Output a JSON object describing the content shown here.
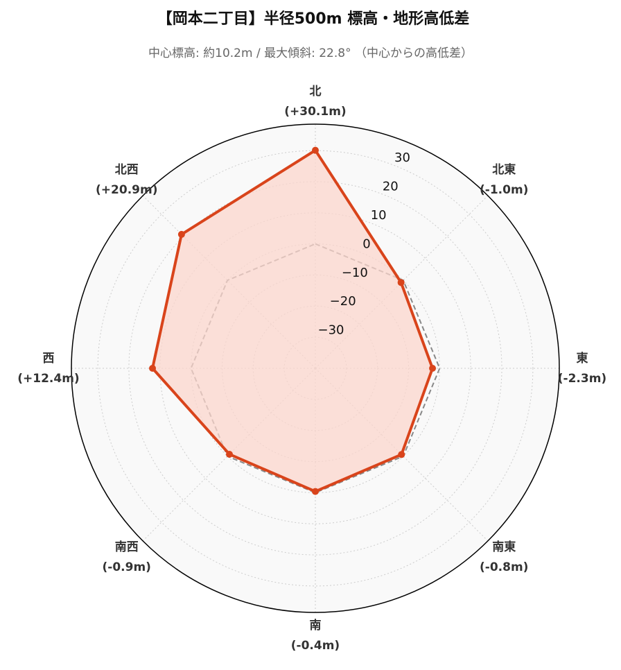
{
  "chart_data": {
    "type": "radar",
    "title": "【岡本二丁目】半径500m 標高・地形高低差",
    "subtitle": "中心標高: 約10.2m / 最大傾斜: 22.8° （中心からの高低差）",
    "categories": [
      "北",
      "北東",
      "東",
      "南東",
      "南",
      "南西",
      "西",
      "北西"
    ],
    "series": [
      {
        "color": "#d9441b",
        "fill": "#fbd6cc",
        "values": [
          30.1,
          -1.0,
          -2.3,
          -0.8,
          -0.4,
          -0.9,
          12.4,
          20.9
        ],
        "value_labels": [
          "(+30.1m)",
          "(-1.0m)",
          "(-2.3m)",
          "(-0.8m)",
          "(-0.4m)",
          "(-0.9m)",
          "(+12.4m)",
          "(+20.9m)"
        ]
      }
    ],
    "baseline": 0,
    "ylim": [
      -40,
      38.5
    ],
    "yticks": [
      {
        "value": -30,
        "label": "−30"
      },
      {
        "value": -20,
        "label": "−20"
      },
      {
        "value": -10,
        "label": "−10"
      },
      0,
      10,
      20,
      30
    ],
    "grid": true
  }
}
